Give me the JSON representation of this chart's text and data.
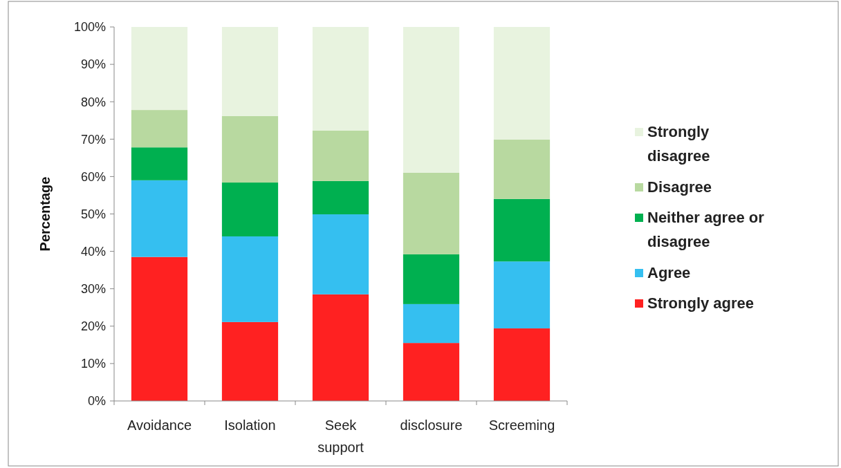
{
  "chart_data": {
    "type": "bar",
    "stacked": true,
    "ylabel": "Percentage",
    "categories": [
      "Avoidance",
      "Isolation",
      "Seek support",
      "disclosure",
      "Screeming"
    ],
    "series": [
      {
        "name": "Strongly agree",
        "color": "#ff2121",
        "values": [
          38.5,
          21.1,
          28.5,
          15.5,
          19.4
        ]
      },
      {
        "name": "Agree",
        "color": "#35bff0",
        "values": [
          20.5,
          22.9,
          21.4,
          10.4,
          17.9
        ]
      },
      {
        "name": "Neither agree or disagree",
        "color": "#00b050",
        "values": [
          8.8,
          14.4,
          8.9,
          13.3,
          16.7
        ]
      },
      {
        "name": "Disagree",
        "color": "#b8d9a0",
        "values": [
          10,
          17.8,
          13.5,
          21.8,
          15.9
        ]
      },
      {
        "name": "Strongly disagree",
        "color": "#e8f3df",
        "values": [
          22.2,
          23.8,
          27.7,
          39,
          30.1
        ]
      }
    ],
    "ylim": [
      0,
      100
    ],
    "yticks": [
      {
        "value": 0,
        "label": "0%"
      },
      {
        "value": 10,
        "label": "10%"
      },
      {
        "value": 20,
        "label": "20%"
      },
      {
        "value": 30,
        "label": "30%"
      },
      {
        "value": 40,
        "label": "40%"
      },
      {
        "value": 50,
        "label": "50%"
      },
      {
        "value": 60,
        "label": "60%"
      },
      {
        "value": 70,
        "label": "70%"
      },
      {
        "value": 80,
        "label": "80%"
      },
      {
        "value": 90,
        "label": "90%"
      },
      {
        "value": 100,
        "label": "100%"
      }
    ],
    "legend": "right"
  }
}
